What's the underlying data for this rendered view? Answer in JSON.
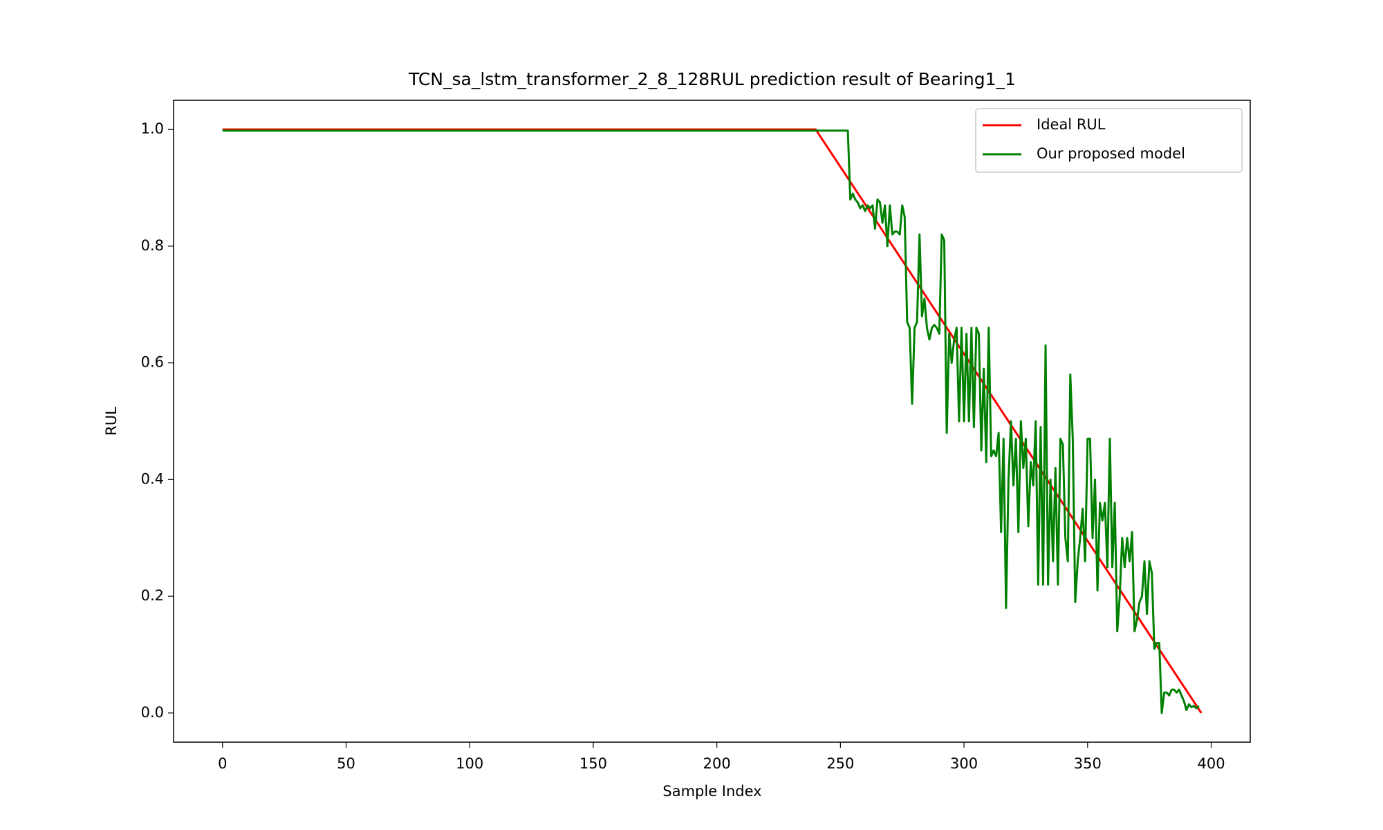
{
  "chart_data": {
    "type": "line",
    "title": "TCN_sa_lstm_transformer_2_8_128RUL prediction result of Bearing1_1",
    "xlabel": "Sample Index",
    "ylabel": "RUL",
    "xlim": [
      -19.8,
      415.8
    ],
    "ylim": [
      -0.05,
      1.05
    ],
    "xticks": [
      0,
      50,
      100,
      150,
      200,
      250,
      300,
      350,
      400
    ],
    "yticks": [
      {
        "value": 0,
        "label": "0.0"
      },
      0.2,
      0.4,
      0.6,
      0.8,
      {
        "value": 1,
        "label": "1.0"
      }
    ],
    "legend": "upper right",
    "grid": false,
    "series": [
      {
        "name": "Ideal RUL",
        "color": "#ff0000",
        "x": [
          0,
          240,
          396
        ],
        "values": [
          1,
          1,
          0
        ]
      },
      {
        "name": "Our proposed model",
        "color": "#008000",
        "x": [
          0,
          253,
          254,
          255,
          256,
          257,
          258,
          259,
          260,
          261,
          262,
          263,
          264,
          265,
          266,
          267,
          268,
          269,
          270,
          271,
          272,
          273,
          274,
          275,
          276,
          277,
          278,
          279,
          280,
          281,
          282,
          283,
          284,
          285,
          286,
          287,
          288,
          289,
          290,
          291,
          292,
          293,
          294,
          295,
          296,
          297,
          298,
          299,
          300,
          301,
          302,
          303,
          304,
          305,
          306,
          307,
          308,
          309,
          310,
          311,
          312,
          313,
          314,
          315,
          316,
          317,
          318,
          319,
          320,
          321,
          322,
          323,
          324,
          325,
          326,
          327,
          328,
          329,
          330,
          331,
          332,
          333,
          334,
          335,
          336,
          337,
          338,
          339,
          340,
          341,
          342,
          343,
          344,
          345,
          346,
          347,
          348,
          349,
          350,
          351,
          352,
          353,
          354,
          355,
          356,
          357,
          358,
          359,
          360,
          361,
          362,
          363,
          364,
          365,
          366,
          367,
          368,
          369,
          370,
          371,
          372,
          373,
          374,
          375,
          376,
          377,
          378,
          379,
          380,
          381,
          382,
          383,
          384,
          385,
          386,
          387,
          388,
          389,
          390,
          391,
          392,
          393,
          394,
          395
        ],
        "values": [
          0.998,
          0.998,
          0.88,
          0.89,
          0.88,
          0.875,
          0.865,
          0.87,
          0.86,
          0.87,
          0.865,
          0.87,
          0.83,
          0.88,
          0.875,
          0.84,
          0.87,
          0.8,
          0.87,
          0.82,
          0.825,
          0.825,
          0.82,
          0.87,
          0.85,
          0.67,
          0.66,
          0.53,
          0.66,
          0.67,
          0.82,
          0.68,
          0.71,
          0.66,
          0.64,
          0.66,
          0.665,
          0.66,
          0.65,
          0.82,
          0.81,
          0.48,
          0.65,
          0.6,
          0.64,
          0.66,
          0.5,
          0.66,
          0.5,
          0.65,
          0.5,
          0.66,
          0.49,
          0.66,
          0.65,
          0.45,
          0.59,
          0.43,
          0.66,
          0.44,
          0.45,
          0.44,
          0.48,
          0.31,
          0.47,
          0.18,
          0.4,
          0.5,
          0.39,
          0.47,
          0.31,
          0.5,
          0.42,
          0.47,
          0.32,
          0.43,
          0.39,
          0.5,
          0.22,
          0.49,
          0.22,
          0.63,
          0.22,
          0.4,
          0.26,
          0.42,
          0.22,
          0.47,
          0.46,
          0.3,
          0.26,
          0.58,
          0.47,
          0.19,
          0.26,
          0.3,
          0.35,
          0.26,
          0.47,
          0.47,
          0.3,
          0.4,
          0.21,
          0.36,
          0.33,
          0.36,
          0.25,
          0.47,
          0.25,
          0.36,
          0.14,
          0.2,
          0.3,
          0.25,
          0.3,
          0.26,
          0.31,
          0.14,
          0.16,
          0.19,
          0.2,
          0.26,
          0.17,
          0.26,
          0.24,
          0.11,
          0.12,
          0.12,
          0.0,
          0.035,
          0.035,
          0.03,
          0.04,
          0.04,
          0.035,
          0.04,
          0.03,
          0.02,
          0.005,
          0.015,
          0.01,
          0.012,
          0.008,
          0.012
        ]
      }
    ]
  }
}
